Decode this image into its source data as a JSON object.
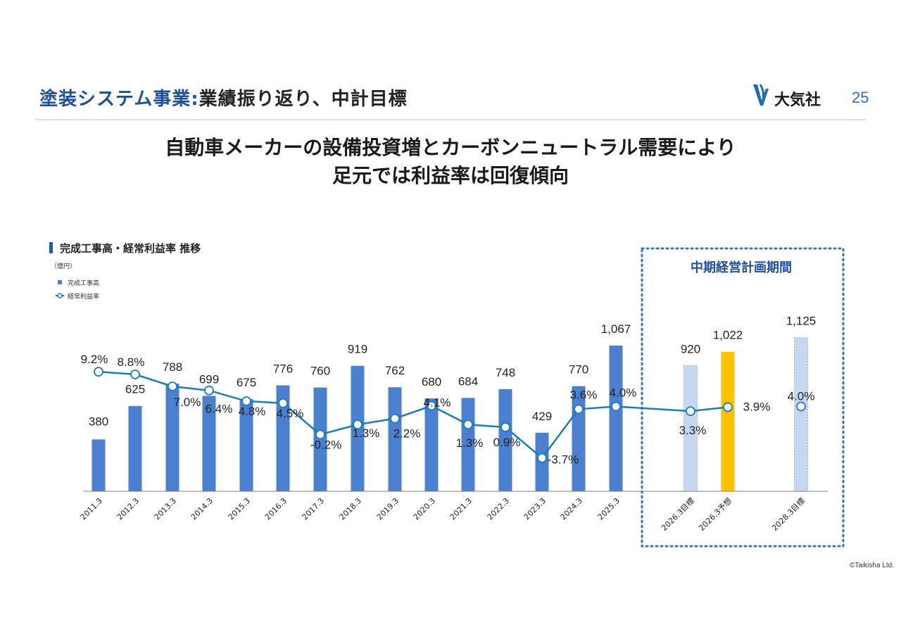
{
  "header": {
    "title_accent": "塗装システム事業",
    "title_colon": ":",
    "title_rest": "業績振り返り、中計目標",
    "company": "大気社",
    "page_number": "25"
  },
  "headline": {
    "line1": "自動車メーカーの設備投資増とカーボンニュートラル需要により",
    "line2": "足元では利益率は回復傾向"
  },
  "section": {
    "label": "完成工事高・経常利益率 推移",
    "unit": "（億円）",
    "legend_bar": "完成工事高",
    "legend_line": "経常利益率"
  },
  "plan_box_label": "中期経営計画期間",
  "copyright": "©Taikisha Ltd.",
  "colors": {
    "bar_actual": "#4a80cf",
    "bar_target": "#c6d7ef",
    "bar_forecast": "#ffc000",
    "line": "#1a7db5",
    "accent": "#1f4e9c"
  },
  "chart_data": {
    "type": "bar",
    "title": "完成工事高・経常利益率 推移",
    "ylabel": "億円",
    "categories": [
      "2011.3",
      "2012.3",
      "2013.3",
      "2014.3",
      "2015.3",
      "2016.3",
      "2017.3",
      "2018.3",
      "2019.3",
      "2020.3",
      "2021.3",
      "2022.3",
      "2023.3",
      "2024.3",
      "2025.3",
      "2026.3目標",
      "2026.3予想",
      "2028.3目標"
    ],
    "series": [
      {
        "name": "完成工事高",
        "values": [
          380,
          625,
          788,
          699,
          675,
          776,
          760,
          919,
          762,
          680,
          684,
          748,
          429,
          770,
          1067,
          920,
          1022,
          1125
        ],
        "labels": [
          "380",
          "625",
          "788",
          "699",
          "675",
          "776",
          "760",
          "919",
          "762",
          "680",
          "684",
          "748",
          "429",
          "770",
          "1,067",
          "920",
          "1,022",
          "1,125"
        ]
      },
      {
        "name": "経常利益率",
        "values": [
          9.2,
          8.8,
          7.0,
          6.4,
          4.8,
          4.5,
          -0.2,
          1.3,
          2.2,
          4.1,
          1.3,
          0.9,
          -3.7,
          3.6,
          4.0,
          3.3,
          3.9,
          4.0
        ],
        "labels": [
          "9.2%",
          "8.8%",
          "7.0%",
          "6.4%",
          "4.8%",
          "4.5%",
          "-0.2%",
          "1.3%",
          "2.2%",
          "4.1%",
          "1.3%",
          "0.9%",
          "-3.7%",
          "3.6%",
          "4.0%",
          "3.3%",
          "3.9%",
          "4.0%"
        ]
      }
    ],
    "ylim": [
      0,
      1300
    ],
    "y2lim": [
      -4.5,
      11
    ],
    "grid": false
  }
}
